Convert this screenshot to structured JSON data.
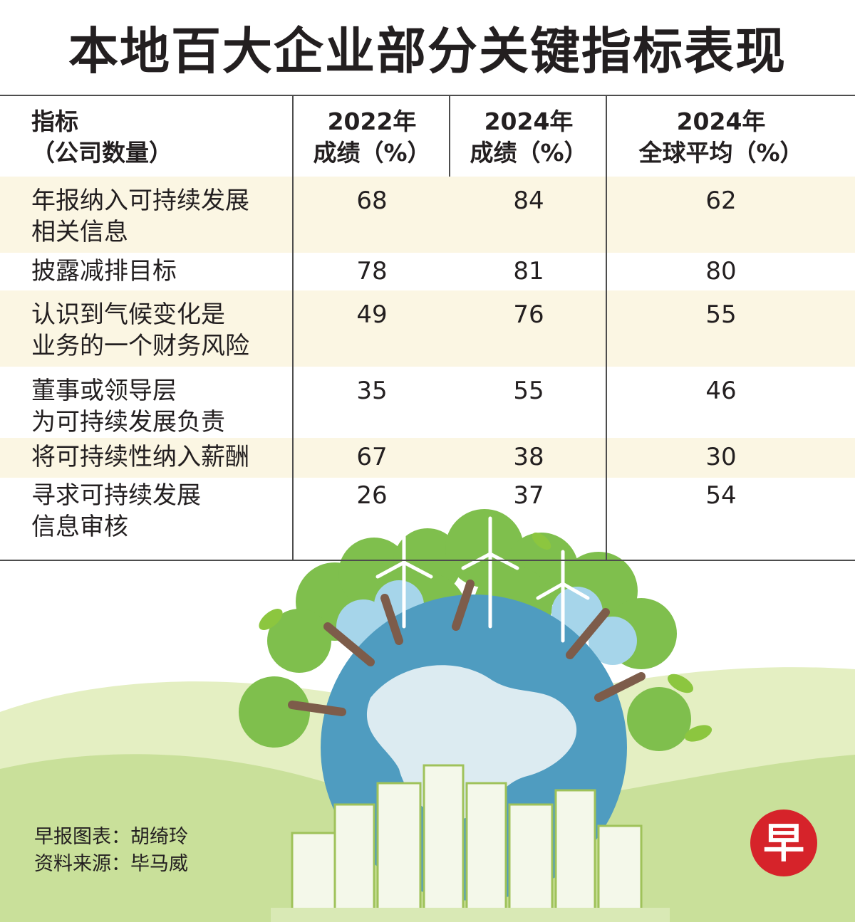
{
  "title": "本地百大企业部分关键指标表现",
  "table": {
    "headers": [
      "指标\n（公司数量）",
      "2022年\n成绩（%）",
      "2024年\n成绩（%）",
      "2024年\n全球平均（%）"
    ],
    "rows": [
      {
        "label": "年报纳入可持续发展\n相关信息",
        "v2022": "68",
        "v2024": "84",
        "global": "62"
      },
      {
        "label": "披露减排目标",
        "v2022": "78",
        "v2024": "81",
        "global": "80"
      },
      {
        "label": "认识到气候变化是\n业务的一个财务风险",
        "v2022": "49",
        "v2024": "76",
        "global": "55"
      },
      {
        "label": "董事或领导层\n为可持续发展负责",
        "v2022": "35",
        "v2024": "55",
        "global": "46"
      },
      {
        "label": "将可持续性纳入薪酬",
        "v2022": "67",
        "v2024": "38",
        "global": "30"
      },
      {
        "label": "寻求可持续发展\n信息审核",
        "v2022": "26",
        "v2024": "37",
        "global": "54"
      }
    ]
  },
  "chart_data": {
    "type": "table",
    "title": "本地百大企业部分关键指标表现",
    "columns": [
      "指标（公司数量）",
      "2022年成绩（%）",
      "2024年成绩（%）",
      "2024年全球平均（%）"
    ],
    "rows": [
      [
        "年报纳入可持续发展相关信息",
        68,
        84,
        62
      ],
      [
        "披露减排目标",
        78,
        81,
        80
      ],
      [
        "认识到气候变化是业务的一个财务风险",
        49,
        76,
        55
      ],
      [
        "董事或领导层为可持续发展负责",
        35,
        55,
        46
      ],
      [
        "将可持续性纳入薪酬",
        67,
        38,
        30
      ],
      [
        "寻求可持续发展信息审核",
        26,
        37,
        54
      ]
    ]
  },
  "credits": {
    "line1": "早报图表：胡绮玲",
    "line2": "资料来源：毕马威"
  },
  "logo": {
    "text": "早",
    "color": "#d6232a"
  },
  "colors": {
    "row_shade": "#fbf6e3",
    "hill_light": "#e4efc2",
    "hill_mid": "#c9e09a",
    "tree": "#7fbf4d",
    "globe": "#4f9cc0"
  }
}
